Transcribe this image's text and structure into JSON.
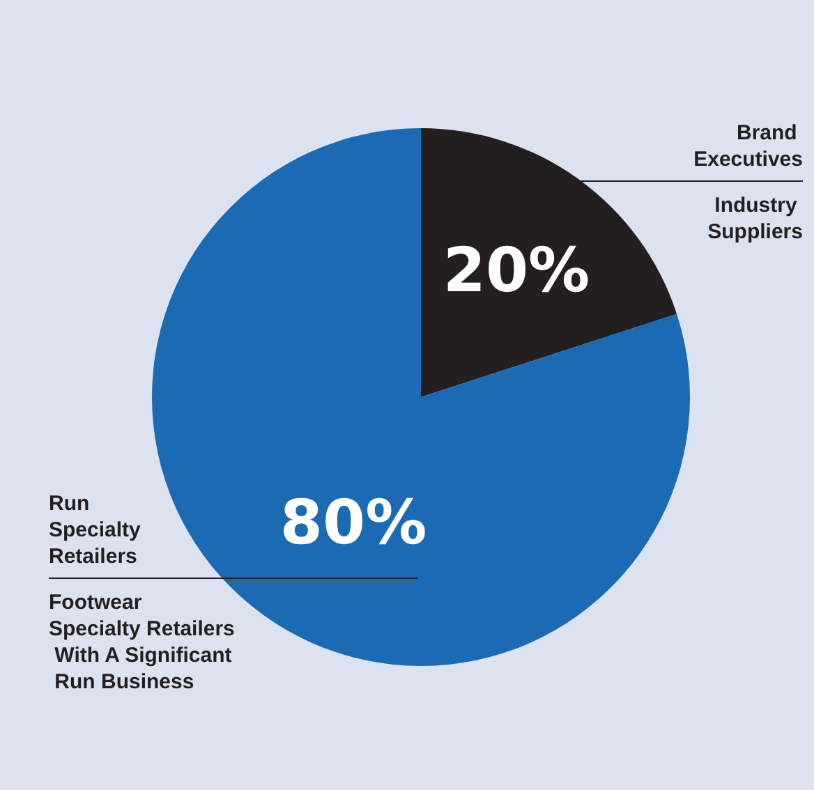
{
  "chart_data": {
    "type": "pie",
    "categories": [
      "Brand Executives\nIndustry Suppliers",
      "Run Specialty Retailers\nFootwear Specialty Retailers With A Significant Run Business"
    ],
    "values": [
      20,
      80
    ],
    "colors": [
      "#231f20",
      "#1a6bb3"
    ],
    "value_labels": [
      "20%",
      "80%"
    ],
    "legend": false
  }
}
